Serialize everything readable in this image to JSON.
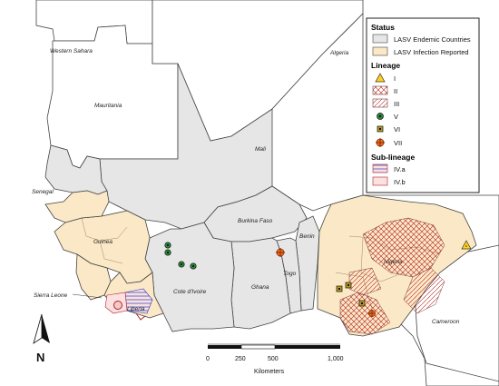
{
  "countries": {
    "western_sahara": "Western Sahara",
    "algeria": "Algeria",
    "mauritania": "Mauritania",
    "mali": "Mali",
    "senegal": "Senegal",
    "guinea": "Guinea",
    "burkina_faso": "Burkina Faso",
    "benin": "Benin",
    "nigeria": "Nigeria",
    "togo": "Togo",
    "ghana": "Ghana",
    "cote_divoire": "Cote d'Ivoire",
    "sierra_leone": "Sierra Leone",
    "liberia": "Liberia",
    "cameroon": "Cameroon"
  },
  "legend": {
    "status_title": "Status",
    "status_items": [
      {
        "label": "LASV Endemic Countries",
        "color": "#e6e6e6"
      },
      {
        "label": "LASV Infection Reported",
        "color": "#fbe8c6"
      }
    ],
    "lineage_title": "Lineage",
    "lineage_items": [
      {
        "label": "I",
        "symbol": "yellow-triangle"
      },
      {
        "label": "II",
        "symbol": "crosshatch-red"
      },
      {
        "label": "III",
        "symbol": "diagonal-hatch-red"
      },
      {
        "label": "V",
        "symbol": "green-circle"
      },
      {
        "label": "VI",
        "symbol": "olive-square"
      },
      {
        "label": "VII",
        "symbol": "orange-cross-circle"
      }
    ],
    "sublineage_title": "Sub-lineage",
    "sublineage_items": [
      {
        "label": "IV.a",
        "symbol": "blue-horizontal-hatch"
      },
      {
        "label": "IV.b",
        "symbol": "pink-fill"
      }
    ]
  },
  "scale_bar": {
    "ticks": [
      "0",
      "250",
      "500",
      "1,000"
    ],
    "unit": "Kilometers"
  },
  "north_arrow": "N",
  "colors": {
    "endemic": "#e6e6e6",
    "reported": "#fbe8c6",
    "background": "#ffffff",
    "border": "#555555",
    "hatch": "#b22222"
  }
}
